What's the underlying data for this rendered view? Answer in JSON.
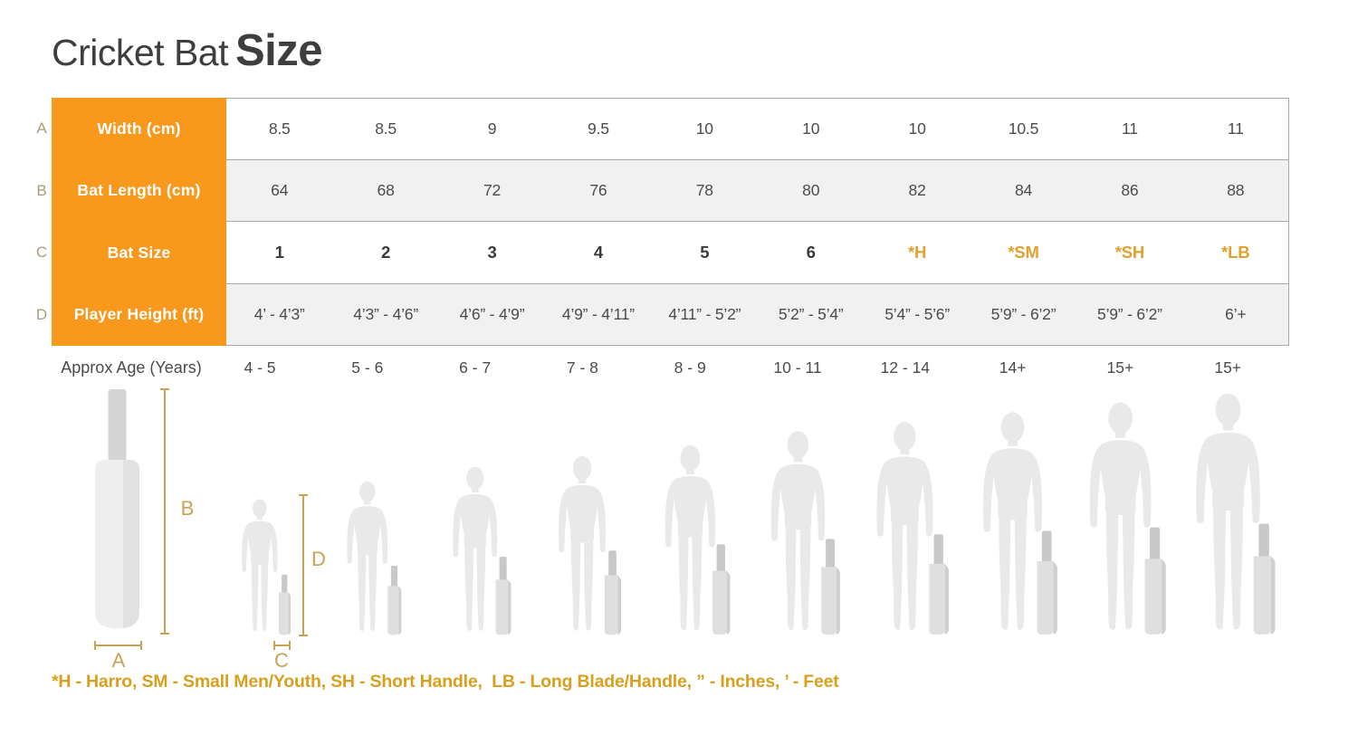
{
  "title": {
    "regular": "Cricket Bat",
    "bold": "Size"
  },
  "table": {
    "rows": [
      {
        "letter": "A",
        "label": "Width (cm)",
        "shaded": false,
        "emphasis": false,
        "values": [
          "8.5",
          "8.5",
          "9",
          "9.5",
          "10",
          "10",
          "10",
          "10.5",
          "11",
          "11"
        ]
      },
      {
        "letter": "B",
        "label": "Bat Length (cm)",
        "shaded": true,
        "emphasis": false,
        "values": [
          "64",
          "68",
          "72",
          "76",
          "78",
          "80",
          "82",
          "84",
          "86",
          "88"
        ]
      },
      {
        "letter": "C",
        "label": "Bat Size",
        "shaded": false,
        "emphasis": true,
        "values": [
          "1",
          "2",
          "3",
          "4",
          "5",
          "6",
          "*H",
          "*SM",
          "*SH",
          "*LB"
        ]
      },
      {
        "letter": "D",
        "label": "Player Height (ft)",
        "shaded": true,
        "emphasis": false,
        "values": [
          "4’ - 4’3”",
          "4’3” - 4’6”",
          "4’6” - 4’9”",
          "4’9” - 4’11”",
          "4’11” - 5’2”",
          "5’2” - 5’4”",
          "5’4” - 5’6”",
          "5’9” - 6’2”",
          "5’9” - 6’2”",
          "6’+"
        ]
      }
    ]
  },
  "age_row": {
    "label": "Approx Age (Years)"
  },
  "illustration": {
    "figures": [
      {
        "age": "4 - 5",
        "person_h": 150,
        "bat_h": 68
      },
      {
        "age": "5 - 6",
        "person_h": 170,
        "bat_h": 78
      },
      {
        "age": "6 - 7",
        "person_h": 186,
        "bat_h": 88
      },
      {
        "age": "7 - 8",
        "person_h": 198,
        "bat_h": 95
      },
      {
        "age": "8 - 9",
        "person_h": 210,
        "bat_h": 102
      },
      {
        "age": "10 - 11",
        "person_h": 226,
        "bat_h": 108
      },
      {
        "age": "12 - 14",
        "person_h": 236,
        "bat_h": 113
      },
      {
        "age": "14+",
        "person_h": 247,
        "bat_h": 117
      },
      {
        "age": "15+",
        "person_h": 258,
        "bat_h": 121
      },
      {
        "age": "15+",
        "person_h": 268,
        "bat_h": 125
      }
    ]
  },
  "dims": {
    "a": "A",
    "b": "B",
    "c": "C",
    "d": "D"
  },
  "footnote": "*H - Harro, SM - Small Men/Youth, SH - Short Handle,  LB - Long Blade/Handle, ” - Inches, ’ - Feet",
  "colors": {
    "header_orange": "#F8991D",
    "accent_gold": "#E0A12E",
    "dimension_tan": "#C9A254",
    "footnote_gold": "#D7A01F",
    "row_shade": "#F1F1F1",
    "border_gray": "#A8A8A8",
    "silhouette_gray": "#E9E9E9"
  },
  "chart_data": {
    "type": "table",
    "title": "Cricket Bat Size",
    "rows": [
      {
        "label": "Width (cm)",
        "values": [
          8.5,
          8.5,
          9,
          9.5,
          10,
          10,
          10,
          10.5,
          11,
          11
        ]
      },
      {
        "label": "Bat Length (cm)",
        "values": [
          64,
          68,
          72,
          76,
          78,
          80,
          82,
          84,
          86,
          88
        ]
      },
      {
        "label": "Bat Size",
        "values": [
          "1",
          "2",
          "3",
          "4",
          "5",
          "6",
          "*H",
          "*SM",
          "*SH",
          "*LB"
        ]
      },
      {
        "label": "Player Height (ft)",
        "values": [
          "4’ - 4’3”",
          "4’3” - 4’6”",
          "4’6” - 4’9”",
          "4’9” - 4’11”",
          "4’11” - 5’2”",
          "5’2” - 5’4”",
          "5’4” - 5’6”",
          "5’9” - 6’2”",
          "5’9” - 6’2”",
          "6’+"
        ]
      },
      {
        "label": "Approx Age (Years)",
        "values": [
          "4 - 5",
          "5 - 6",
          "6 - 7",
          "7 - 8",
          "8 - 9",
          "10 - 11",
          "12 - 14",
          "14+",
          "15+",
          "15+"
        ]
      }
    ],
    "notes": "*H - Harro, SM - Small Men/Youth, SH - Short Handle, LB - Long Blade/Handle, ” - Inches, ’ - Feet"
  }
}
